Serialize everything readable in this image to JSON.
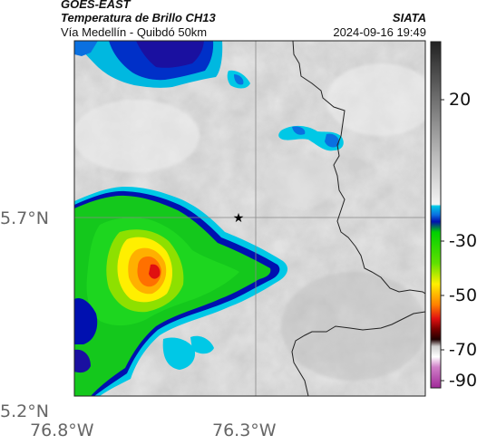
{
  "header": {
    "satellite": "GOES-EAST",
    "product": "Temperatura de Brillo CH13",
    "route": "Vía Medellín - Quibdó 50km",
    "source": "SIATA",
    "datetime": "2024-09-16 19:49"
  },
  "map": {
    "lat_labels": [
      "5.7°N",
      "5.2°N"
    ],
    "lon_labels": [
      "76.8°W",
      "76.3°W"
    ],
    "marker": "star-icon",
    "gridlines": true
  },
  "colorbar": {
    "tick_labels": [
      "20",
      "-30",
      "-50",
      "-70",
      "-90"
    ],
    "colors": {
      "gray_high": "#333333",
      "gray_low": "#f2f2f2",
      "cyan": "#00c8e6",
      "blue": "#0010b0",
      "green": "#15c81a",
      "yellow": "#ffef00",
      "orange": "#ff8000",
      "red": "#e01010",
      "dark_red": "#400000",
      "magenta": "#b83aa8"
    }
  }
}
